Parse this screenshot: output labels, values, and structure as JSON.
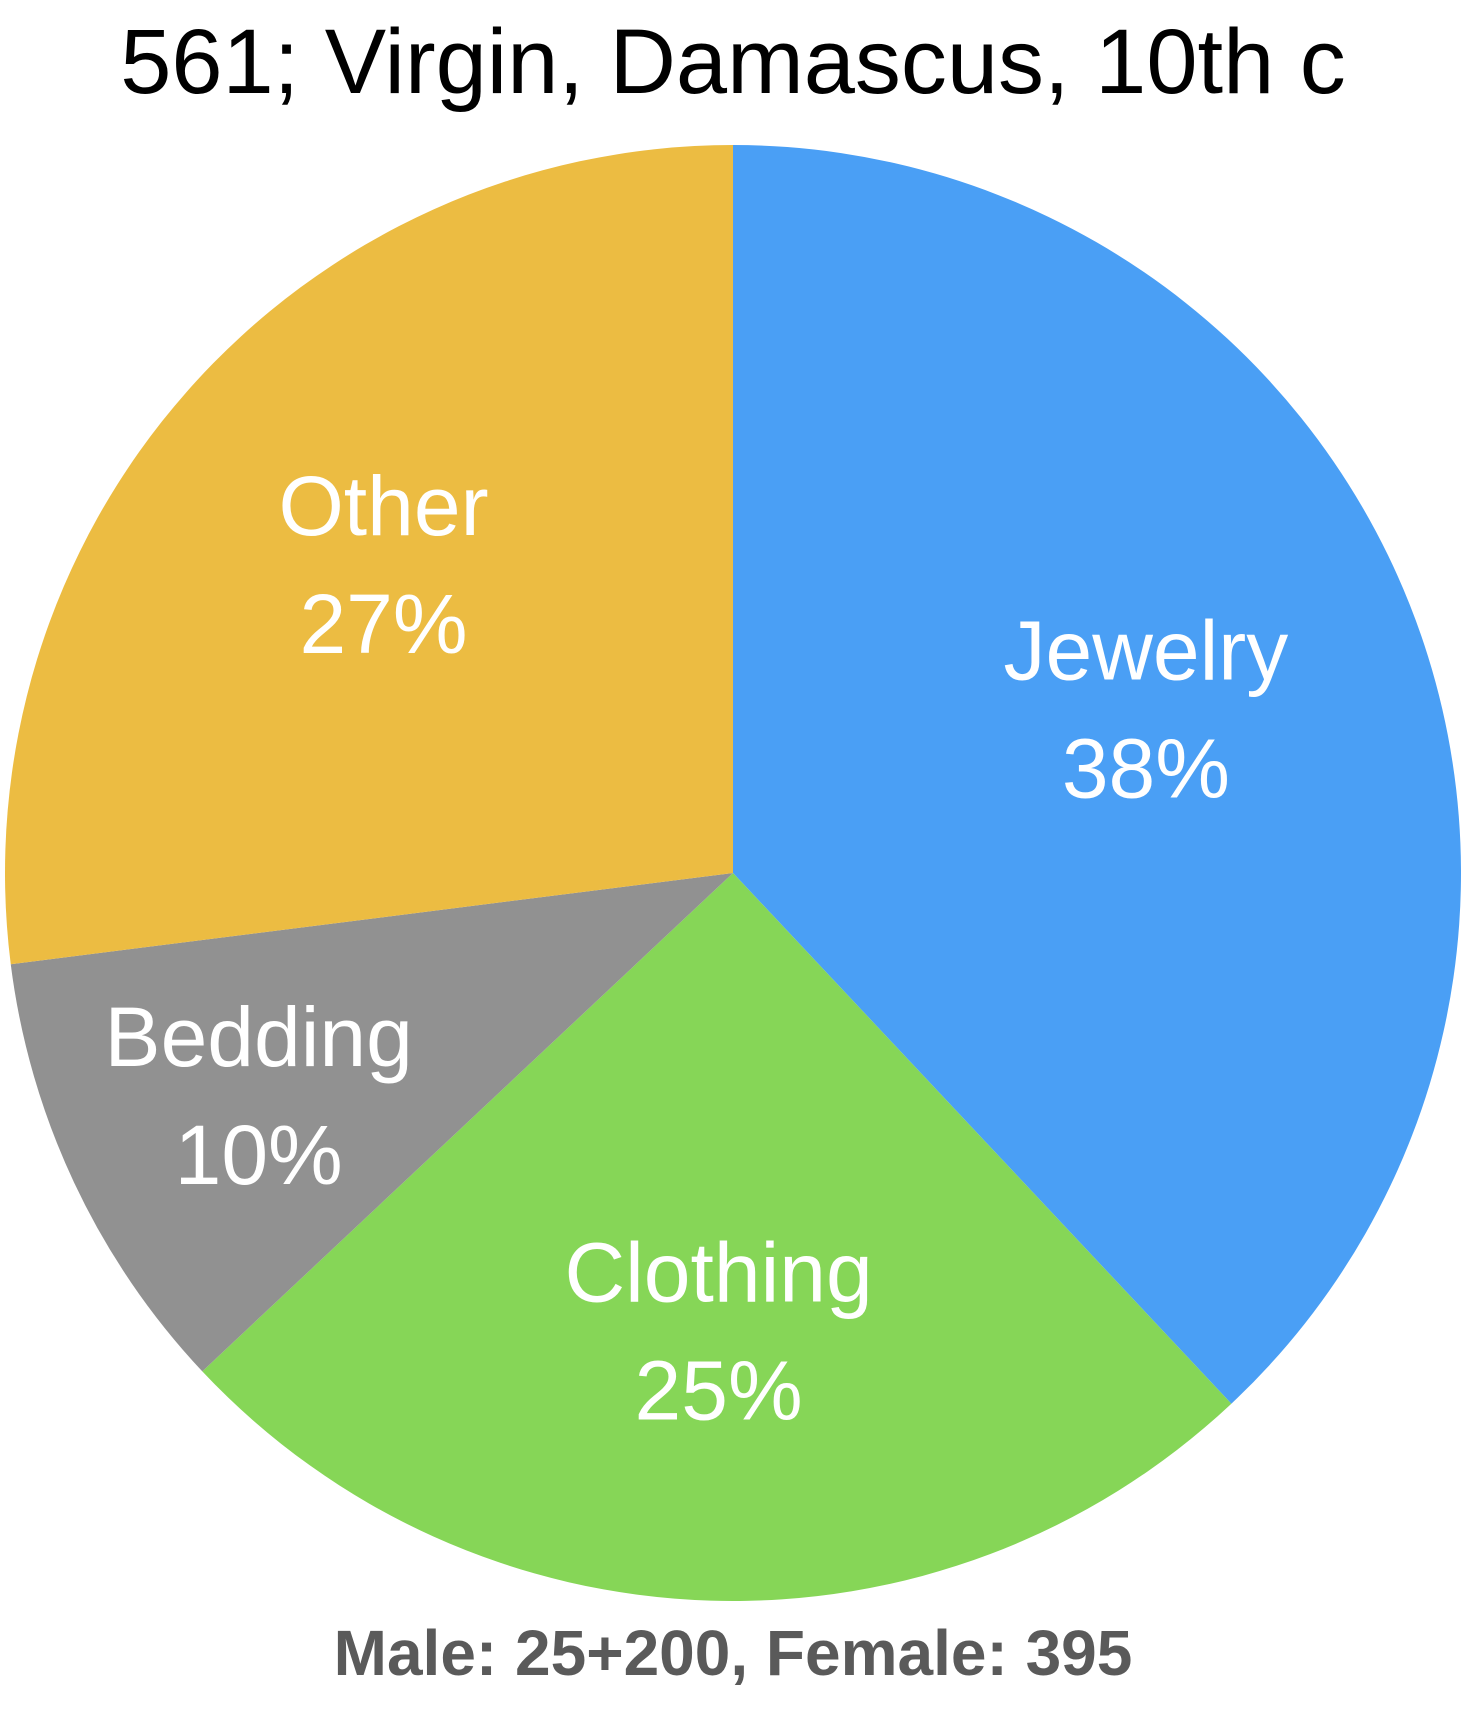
{
  "chart_data": {
    "type": "pie",
    "title": "561; Virgin, Damascus, 10th c",
    "categories": [
      "Jewelry",
      "Clothing",
      "Bedding",
      "Other"
    ],
    "values": [
      38,
      25,
      10,
      27
    ],
    "value_labels": [
      "38%",
      "25%",
      "10%",
      "27%"
    ],
    "colors": [
      "#4a9ff5",
      "#86d657",
      "#919191",
      "#ecbc42"
    ],
    "start_angle": "12 o'clock, clockwise",
    "legend": "none (labels inside slices)",
    "note": "Male: 25+200, Female: 395"
  }
}
